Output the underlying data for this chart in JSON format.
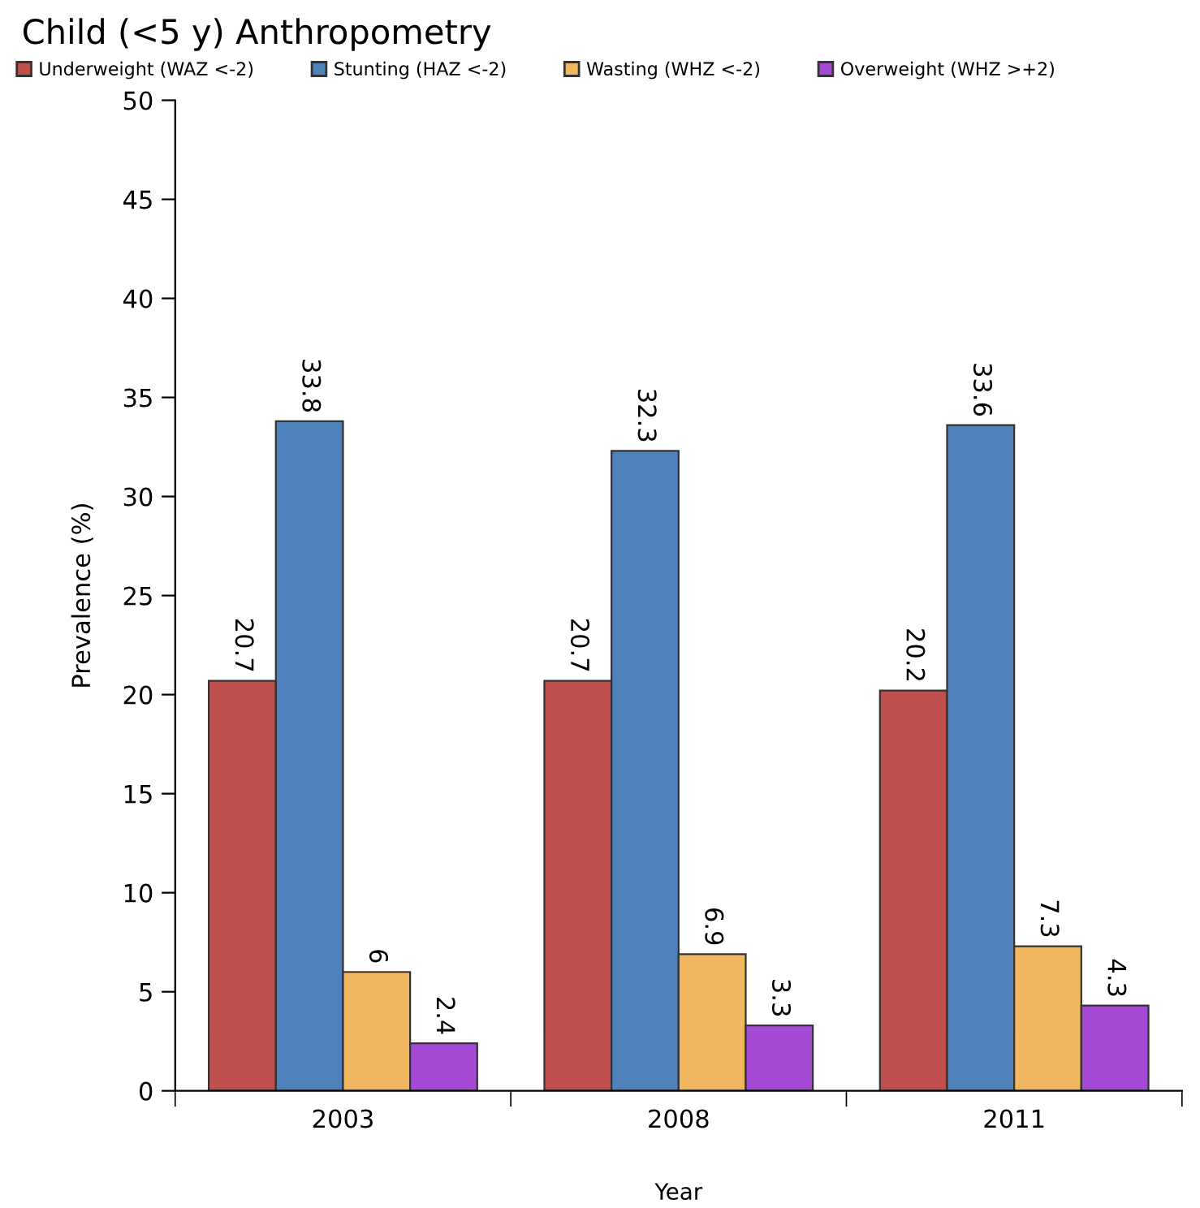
{
  "chart_data": {
    "type": "bar",
    "title": "Child (<5 y) Anthropometry",
    "xlabel": "Year",
    "ylabel": "Prevalence (%)",
    "categories": [
      "2003",
      "2008",
      "2011"
    ],
    "series": [
      {
        "name": "Underweight (WAZ <-2)",
        "color": "#c0504d",
        "values": [
          20.7,
          20.7,
          20.2
        ]
      },
      {
        "name": "Stunting (HAZ <-2)",
        "color": "#4f81bd",
        "values": [
          33.8,
          32.3,
          33.6
        ]
      },
      {
        "name": "Wasting (WHZ <-2)",
        "color": "#f0b660",
        "values": [
          6,
          6.9,
          7.3
        ]
      },
      {
        "name": "Overweight (WHZ >+2)",
        "color": "#a54ad4",
        "values": [
          2.4,
          3.3,
          4.3
        ]
      }
    ],
    "ylim": [
      0,
      50
    ],
    "yticks": [
      0,
      5,
      10,
      15,
      20,
      25,
      30,
      35,
      40,
      45,
      50
    ],
    "grid": false,
    "legend": "top",
    "data_labels": true
  }
}
